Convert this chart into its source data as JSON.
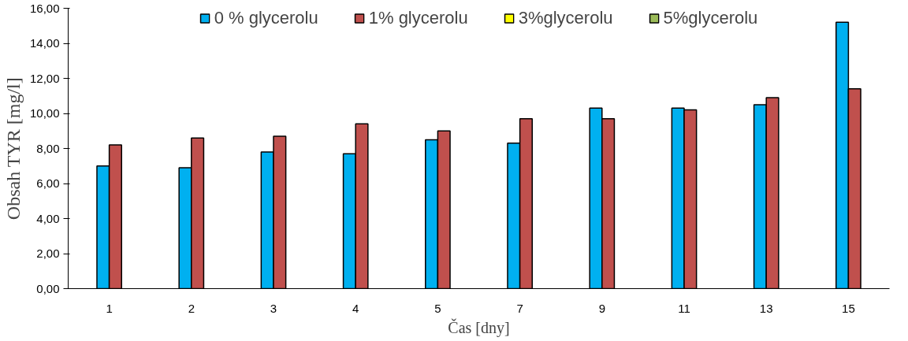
{
  "chart_data": {
    "type": "bar",
    "xlabel": "Čas [dny]",
    "ylabel": "Obsah TYR [mg/l]",
    "categories": [
      "1",
      "2",
      "3",
      "4",
      "5",
      "7",
      "9",
      "11",
      "13",
      "15"
    ],
    "series": [
      {
        "name": "0 % glycerolu",
        "color": "#00b0f0",
        "values": [
          7.0,
          6.9,
          7.8,
          7.7,
          8.5,
          8.3,
          10.3,
          10.3,
          10.5,
          15.2
        ]
      },
      {
        "name": "1% glycerolu",
        "color": "#c0504d",
        "values": [
          8.2,
          8.6,
          8.7,
          9.4,
          9.0,
          9.7,
          9.7,
          10.2,
          10.9,
          11.4
        ]
      },
      {
        "name": "3%glycerolu",
        "color": "#ffff00",
        "values": [
          null,
          null,
          null,
          null,
          null,
          null,
          null,
          null,
          null,
          null
        ]
      },
      {
        "name": "5%glycerolu",
        "color": "#9bbb59",
        "values": [
          null,
          null,
          null,
          null,
          null,
          null,
          null,
          null,
          null,
          null
        ]
      }
    ],
    "ylim": [
      0,
      16
    ],
    "yticks": [
      {
        "value": 0,
        "label": "0,00"
      },
      {
        "value": 2,
        "label": "2,00"
      },
      {
        "value": 4,
        "label": "4,00"
      },
      {
        "value": 6,
        "label": "6,00"
      },
      {
        "value": 8,
        "label": "8,00"
      },
      {
        "value": 10,
        "label": "10,00"
      },
      {
        "value": 12,
        "label": "12,00"
      },
      {
        "value": 14,
        "label": "14,00"
      },
      {
        "value": 16,
        "label": "16,00"
      }
    ],
    "grid": false,
    "legend": "top"
  }
}
